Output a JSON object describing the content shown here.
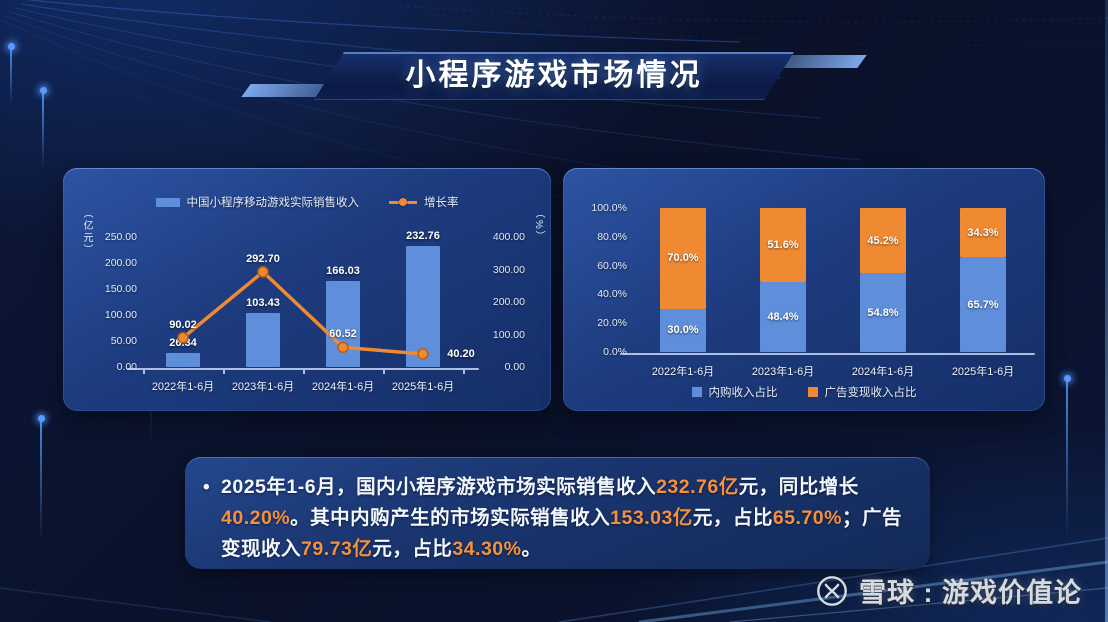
{
  "title": "小程序游戏市场情况",
  "colors": {
    "bar_blue": "#5f8edb",
    "orange": "#ef8a33",
    "highlight_text": "#f5913c",
    "panel_blue": "#1d3b7e",
    "background_navy": "#0a1129"
  },
  "chart_data": [
    {
      "type": "bar",
      "subtype": "bar+line combo",
      "categories": [
        "2022年1-6月",
        "2023年1-6月",
        "2024年1-6月",
        "2025年1-6月"
      ],
      "series": [
        {
          "name": "中国小程序移动游戏实际销售收入",
          "type": "bar",
          "axis": "left",
          "values": [
            26.34,
            103.43,
            166.03,
            232.76
          ],
          "color": "#5f8edb"
        },
        {
          "name": "增长率",
          "type": "line",
          "axis": "right",
          "values": [
            90.02,
            292.7,
            60.52,
            40.2
          ],
          "color": "#ef8a33"
        }
      ],
      "left_axis": {
        "label": "（亿元）",
        "ticks": [
          "250.00",
          "200.00",
          "150.00",
          "100.00",
          "50.00",
          "0.00"
        ],
        "max": 250,
        "min": 0
      },
      "right_axis": {
        "label": "（%）",
        "ticks": [
          "400.00",
          "300.00",
          "200.00",
          "100.00",
          "0.00"
        ],
        "max": 400,
        "min": 0
      },
      "legend_position": "top",
      "grid": false
    },
    {
      "type": "bar",
      "subtype": "stacked percentage",
      "categories": [
        "2022年1-6月",
        "2023年1-6月",
        "2024年1-6月",
        "2025年1-6月"
      ],
      "series": [
        {
          "name": "内购收入占比",
          "values": [
            30.0,
            48.4,
            54.8,
            65.7
          ],
          "color": "#5f8edb"
        },
        {
          "name": "广告变现收入占比",
          "values": [
            70.0,
            51.6,
            45.2,
            34.3
          ],
          "color": "#ef8a33"
        }
      ],
      "y_axis": {
        "ticks": [
          "100.0%",
          "80.0%",
          "60.0%",
          "40.0%",
          "20.0%",
          "0.0%"
        ],
        "max": 100,
        "min": 0
      },
      "legend_position": "bottom",
      "grid": false
    }
  ],
  "summary": {
    "bullet": "•",
    "segments": [
      {
        "text": "2025年1-6月，国内小程序游戏市场实际销售收入",
        "highlight": false
      },
      {
        "text": "232.76亿",
        "highlight": true
      },
      {
        "text": "元，同比增长",
        "highlight": false
      },
      {
        "text": "40.20%",
        "highlight": true
      },
      {
        "text": "。其中内购产生的市场实际销售收入",
        "highlight": false
      },
      {
        "text": "153.03亿",
        "highlight": true
      },
      {
        "text": "元，占比",
        "highlight": false
      },
      {
        "text": "65.70%",
        "highlight": true
      },
      {
        "text": "；广告变现收入",
        "highlight": false
      },
      {
        "text": "79.73亿",
        "highlight": true
      },
      {
        "text": "元，占比",
        "highlight": false
      },
      {
        "text": "34.30%",
        "highlight": true
      },
      {
        "text": "。",
        "highlight": false
      }
    ]
  },
  "watermark": {
    "text": "雪球 : 游戏价值论"
  }
}
